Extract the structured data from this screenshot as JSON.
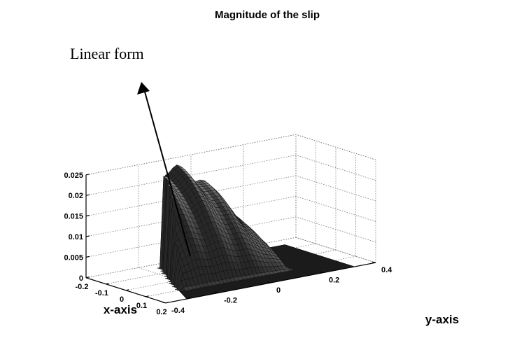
{
  "chart_data": {
    "type": "surface3d",
    "title": "Magnitude of the slip",
    "xlabel": "x-axis",
    "ylabel": "y-axis",
    "zlabel": "",
    "xlim": [
      -0.2,
      0.2
    ],
    "ylim": [
      -0.4,
      0.4
    ],
    "zlim": [
      0,
      0.025
    ],
    "x_ticks": [
      "-0.2",
      "-0.1",
      "0",
      "0.1",
      "0.2"
    ],
    "y_ticks": [
      "-0.4",
      "-0.2",
      "0",
      "0.2",
      "0.4"
    ],
    "z_ticks": [
      "0",
      "0.005",
      "0.01",
      "0.015",
      "0.02",
      "0.025"
    ],
    "grid": true,
    "colormap": "gray",
    "surface_peak": 0.024,
    "annotation": {
      "text": "Linear form"
    }
  }
}
